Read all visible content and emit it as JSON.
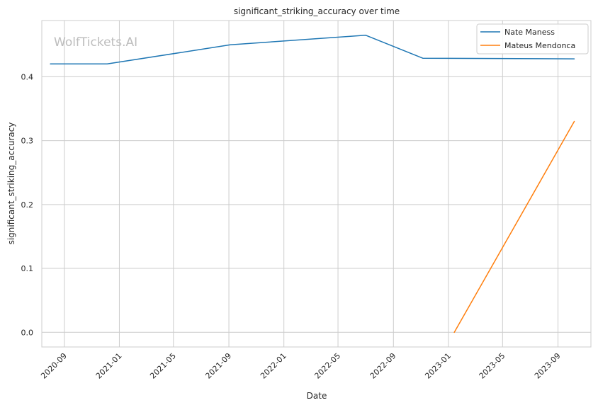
{
  "chart_data": {
    "type": "line",
    "title": "significant_striking_accuracy over time",
    "xlabel": "Date",
    "ylabel": "significant_striking_accuracy",
    "watermark": "WolfTickets.AI",
    "x_ticks": [
      "2020-09",
      "2021-01",
      "2021-05",
      "2021-09",
      "2022-01",
      "2022-05",
      "2022-09",
      "2023-01",
      "2023-05",
      "2023-09"
    ],
    "y_ticks": [
      "0.0",
      "0.1",
      "0.2",
      "0.3",
      "0.4"
    ],
    "xlim": [
      "2020-07-13",
      "2023-11-13"
    ],
    "ylim": [
      -0.023,
      0.488
    ],
    "grid": true,
    "legend_position": "top-right",
    "series": [
      {
        "name": "Nate Maness",
        "color": "#1f77b4",
        "x": [
          "2020-08-01",
          "2020-12-05",
          "2021-09-04",
          "2022-07-01",
          "2022-11-05",
          "2023-10-07"
        ],
        "values": [
          0.42,
          0.42,
          0.45,
          0.465,
          0.429,
          0.428
        ]
      },
      {
        "name": "Mateus Mendonca",
        "color": "#ff7f0e",
        "x": [
          "2023-01-14",
          "2023-10-07"
        ],
        "values": [
          0.0,
          0.33
        ]
      }
    ]
  }
}
